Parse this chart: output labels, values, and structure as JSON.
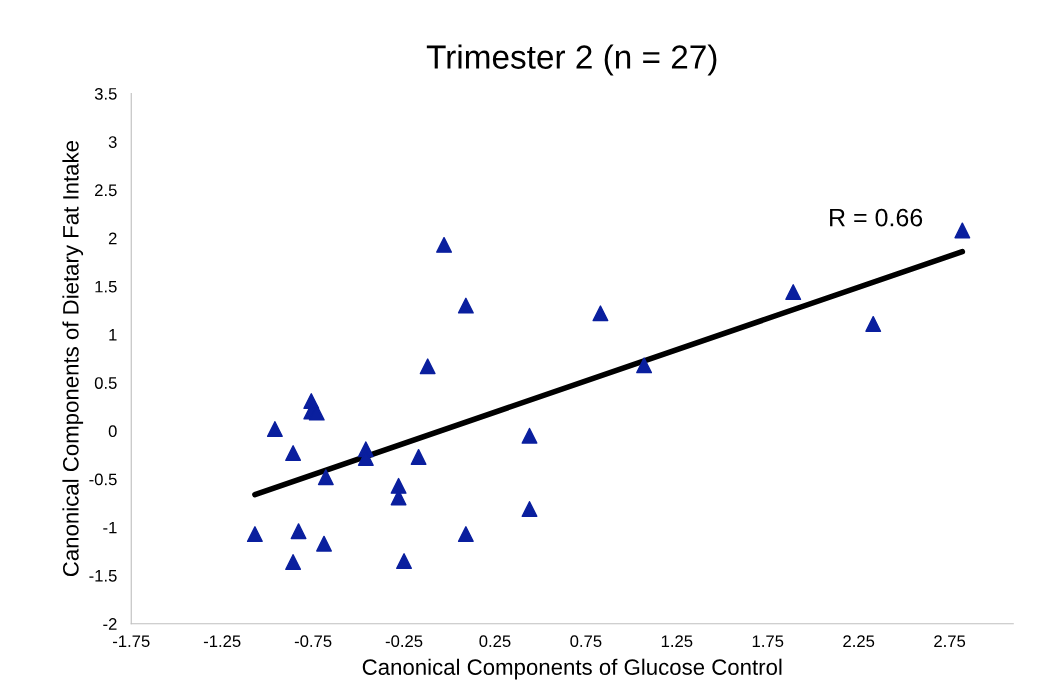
{
  "chart_data": {
    "type": "scatter",
    "title": "Trimester 2 (n = 27)",
    "xlabel": "Canonical Components of Glucose Control",
    "ylabel": "Canonical Components of Dietary Fat Intake",
    "xlim": [
      -1.75,
      3.1
    ],
    "ylim": [
      -2,
      3.5
    ],
    "xticks": [
      -1.75,
      -1.25,
      -0.75,
      -0.25,
      0.25,
      0.75,
      1.25,
      1.75,
      2.25,
      2.75
    ],
    "yticks": [
      -2,
      -1.5,
      -1,
      -0.5,
      0,
      0.5,
      1,
      1.5,
      2,
      2.5,
      3,
      3.5
    ],
    "grid": false,
    "legend": false,
    "marker": "triangle",
    "series": [
      {
        "color": "#0a1f9e",
        "x": [
          -1.07,
          -0.96,
          -0.86,
          -0.86,
          -0.83,
          -0.76,
          -0.76,
          -0.73,
          -0.68,
          -0.69,
          -0.46,
          -0.46,
          -0.28,
          -0.28,
          -0.25,
          -0.17,
          -0.12,
          -0.03,
          0.09,
          0.09,
          0.44,
          0.44,
          0.83,
          1.07,
          1.89,
          2.33,
          2.82
        ],
        "values": [
          -1.07,
          0.02,
          -0.23,
          -1.36,
          -1.04,
          0.31,
          0.2,
          0.19,
          -0.48,
          -1.17,
          -0.19,
          -0.28,
          -0.57,
          -0.69,
          -1.35,
          -0.27,
          0.67,
          1.93,
          1.3,
          -1.07,
          -0.05,
          -0.81,
          1.22,
          0.68,
          1.44,
          1.11,
          2.08
        ]
      },
      {
        "type": "line",
        "marker": "none",
        "color": "#000000",
        "x": [
          -1.07,
          2.82
        ],
        "values": [
          -0.66,
          1.86
        ]
      }
    ],
    "annotations": [
      "R = 0.66"
    ]
  }
}
